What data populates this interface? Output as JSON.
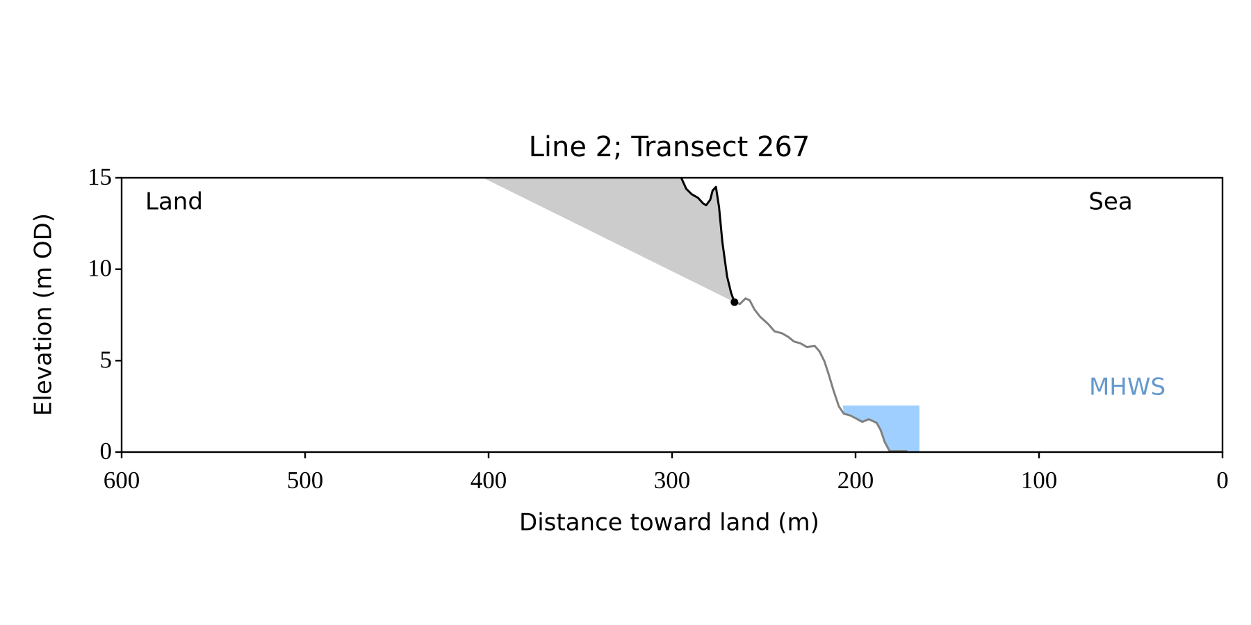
{
  "chart_data": {
    "type": "line",
    "title": "Line 2; Transect 267",
    "xlabel": "Distance toward land (m)",
    "ylabel": "Elevation (m OD)",
    "xlim": [
      600,
      0
    ],
    "xticks": [
      600,
      500,
      400,
      300,
      200,
      100,
      0
    ],
    "ylim": [
      0,
      15
    ],
    "yticks": [
      0,
      5,
      10,
      15
    ],
    "annotations": [
      {
        "text": "Land"
      },
      {
        "text": "Sea"
      }
    ],
    "series": [
      {
        "color": "#000000",
        "x": [
          295,
          292.3,
          289.3,
          285.8,
          283.1,
          281.4,
          279.2,
          277.9,
          276.1,
          274.4,
          272.6,
          270,
          267.8,
          266
        ],
        "values": [
          15,
          14.4,
          14.1,
          13.9,
          13.6,
          13.5,
          13.8,
          14.3,
          14.5,
          13.4,
          11.5,
          9.6,
          8.7,
          8.2
        ]
      },
      {
        "color": "#808080",
        "x": [
          266,
          263,
          260,
          257.7,
          255.1,
          252,
          247.6,
          244.1,
          240.2,
          236.7,
          233.6,
          230.1,
          226.6,
          222.2,
          219.6,
          216.9,
          214.8,
          212.1,
          209.1,
          206.4,
          202.9,
          199.9,
          196.3,
          192.8,
          188.5,
          186.3,
          184.1,
          181.4,
          171.8
        ],
        "values": [
          8.2,
          8.1,
          8.4,
          8.3,
          7.8,
          7.4,
          7.0,
          6.6,
          6.5,
          6.3,
          6.05,
          5.95,
          5.75,
          5.8,
          5.5,
          4.95,
          4.3,
          3.4,
          2.5,
          2.1,
          2.0,
          1.85,
          1.65,
          1.8,
          1.6,
          1.2,
          0.55,
          0.05,
          0.05
        ]
      }
    ],
    "retreat_line": {
      "x": [
        403,
        266
      ],
      "y": [
        15,
        8.2
      ],
      "color": "#cccccc"
    },
    "cliff_toe": {
      "x": 266,
      "y": 8.2,
      "color": "#000000"
    },
    "mhws": {
      "text": "MHWS",
      "level": 2.55,
      "x": [
        206.9,
        165.2
      ],
      "color": "#9fcfff",
      "text_color": "#6699cc"
    }
  }
}
